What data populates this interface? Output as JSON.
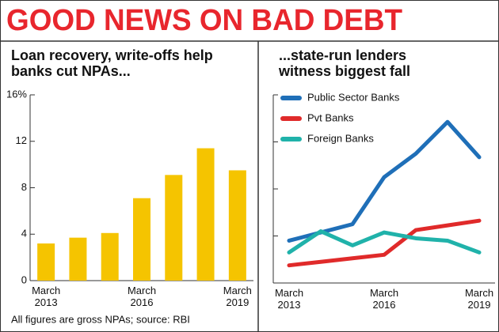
{
  "title": "GOOD NEWS ON BAD DEBT",
  "footnote": "All figures are gross NPAs; source: RBI",
  "chart_data": [
    {
      "type": "bar",
      "title": "Loan recovery, write-offs help banks cut NPAs...",
      "categories": [
        "March 2013",
        null,
        null,
        "March 2016",
        null,
        null,
        "March 2019"
      ],
      "values": [
        3.2,
        3.7,
        4.1,
        7.1,
        9.1,
        11.4,
        9.5
      ],
      "color": "#f5c400",
      "ylim": [
        0,
        16
      ],
      "yticks": [
        0,
        4,
        8,
        12,
        {
          "value": 16,
          "label": "16%"
        }
      ]
    },
    {
      "type": "line",
      "title": "...state-run lenders witness biggest fall",
      "categories": [
        "March 2013",
        null,
        null,
        "March 2016",
        null,
        null,
        "March 2019"
      ],
      "series": [
        {
          "name": "Public Sector Banks",
          "color": "#1f6fb8",
          "values": [
            3.6,
            4.3,
            5.0,
            9.0,
            11.0,
            13.7,
            10.7
          ]
        },
        {
          "name": "Pvt Banks",
          "color": "#e02a2a",
          "values": [
            1.5,
            1.8,
            2.1,
            2.4,
            4.5,
            4.9,
            5.3
          ]
        },
        {
          "name": "Foreign Banks",
          "color": "#20b2aa",
          "values": [
            2.6,
            4.4,
            3.2,
            4.3,
            3.8,
            3.6,
            2.6
          ]
        }
      ],
      "ylim": [
        0,
        16
      ],
      "yticks": [
        0,
        4,
        8,
        12,
        16
      ]
    }
  ]
}
